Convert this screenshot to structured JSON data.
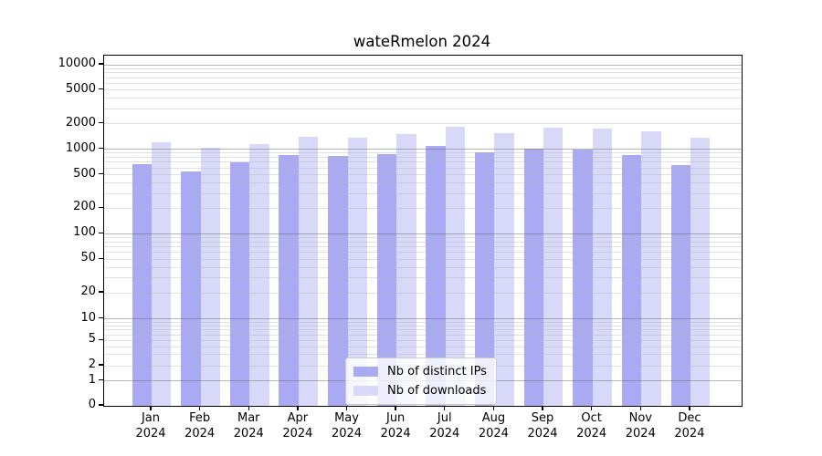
{
  "title": "wateRmelon 2024",
  "chart_data": {
    "type": "bar",
    "title": "wateRmelon 2024",
    "categories": [
      "Jan 2024",
      "Feb 2024",
      "Mar 2024",
      "Apr 2024",
      "May 2024",
      "Jun 2024",
      "Jul 2024",
      "Aug 2024",
      "Sep 2024",
      "Oct 2024",
      "Nov 2024",
      "Dec 2024"
    ],
    "series": [
      {
        "name": "Nb of distinct IPs",
        "color": "#a9a9f4",
        "values": [
          670,
          540,
          700,
          860,
          840,
          870,
          1100,
          920,
          1020,
          980,
          850,
          650
        ]
      },
      {
        "name": "Nb of downloads",
        "color": "#d8d8f8",
        "values": [
          1200,
          1040,
          1150,
          1400,
          1380,
          1490,
          1820,
          1530,
          1780,
          1750,
          1630,
          1360
        ]
      }
    ],
    "xlabel": "",
    "ylabel": "",
    "yticks": [
      0,
      1,
      2,
      5,
      10,
      20,
      50,
      100,
      200,
      500,
      1000,
      2000,
      5000,
      10000
    ],
    "yscale": "log-like (compressed below 10, linear 0-1)",
    "ylim": [
      0,
      10000
    ],
    "grid": true,
    "grid_minor_values": [
      2,
      3,
      4,
      5,
      6,
      7,
      8,
      9,
      20,
      30,
      40,
      50,
      60,
      70,
      80,
      90,
      200,
      300,
      400,
      500,
      600,
      700,
      800,
      900,
      2000,
      3000,
      4000,
      5000,
      6000,
      7000,
      8000,
      9000
    ],
    "grid_major_values": [
      1,
      10,
      100,
      1000,
      10000
    ],
    "legend_position": "lower center",
    "colors": {
      "bar_distinct_ips": "#a9a9f4",
      "bar_downloads": "#d8d8f8",
      "grid_minor": "#e4e4e4",
      "grid_major": "#b9b9b9",
      "axis": "#000000",
      "legend_border": "#cccccc"
    }
  }
}
